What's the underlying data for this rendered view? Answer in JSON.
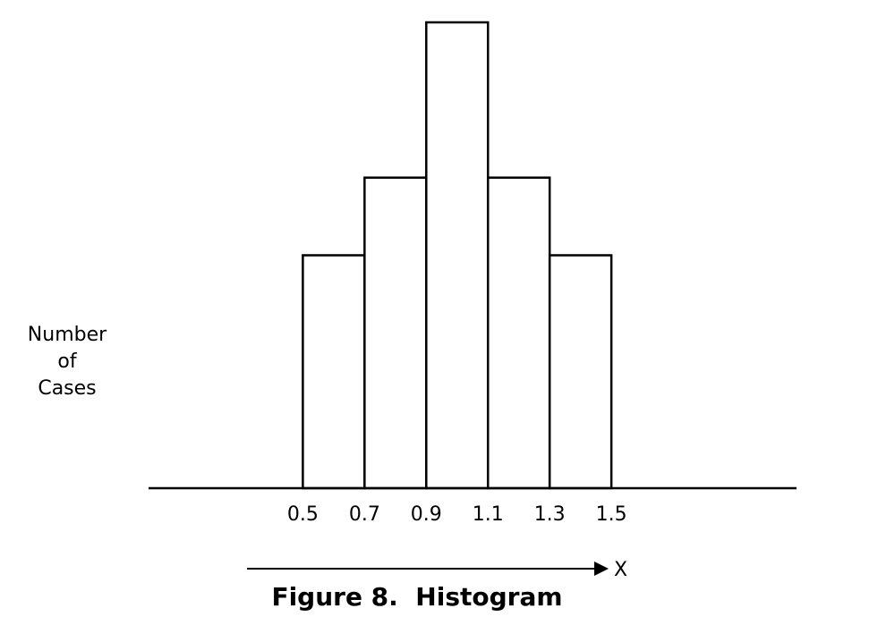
{
  "chart_data": {
    "type": "bar",
    "bins": [
      {
        "start": 0.5,
        "end": 0.7,
        "value": 3
      },
      {
        "start": 0.7,
        "end": 0.9,
        "value": 4
      },
      {
        "start": 0.9,
        "end": 1.1,
        "value": 6
      },
      {
        "start": 1.1,
        "end": 1.3,
        "value": 4
      },
      {
        "start": 1.3,
        "end": 1.5,
        "value": 3
      }
    ],
    "x_ticks": [
      "0.5",
      "0.7",
      "0.9",
      "1.1",
      "1.3",
      "1.5"
    ],
    "xlabel": "X",
    "ylabel_lines": [
      "Number",
      "of",
      "Cases"
    ],
    "xlim": [
      0.0,
      2.1
    ],
    "grid": false
  },
  "caption": "Figure 8.  Histogram"
}
